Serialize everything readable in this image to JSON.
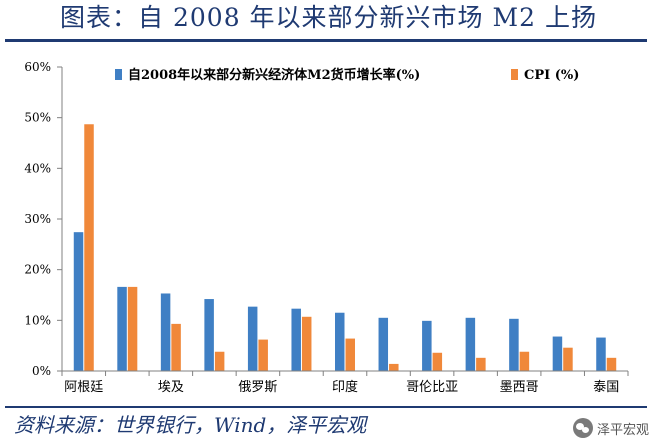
{
  "header": {
    "title": "图表：自 2008 年以来部分新兴市场 M2 上扬"
  },
  "footer": {
    "source": "资料来源：世界银行，Wind，泽平宏观",
    "watermark": "泽平宏观"
  },
  "colors": {
    "series_m2": "#3f7fc4",
    "series_cpi": "#f0883a",
    "frame": "#1f3a72",
    "axis": "#808080"
  },
  "chart_data": {
    "type": "bar",
    "categories": [
      "阿根廷",
      "",
      "埃及",
      "",
      "俄罗斯",
      "",
      "印度",
      "",
      "哥伦比亚",
      "",
      "墨西哥",
      "",
      "泰国"
    ],
    "series": [
      {
        "name": "自2008年以来部分新兴经济体M2货币增长率(%)",
        "values": [
          27.4,
          16.6,
          15.3,
          14.2,
          12.7,
          12.3,
          11.5,
          10.5,
          9.9,
          10.5,
          10.3,
          6.8,
          6.6
        ]
      },
      {
        "name": "CPI (%)",
        "values": [
          48.7,
          16.6,
          9.3,
          3.8,
          6.2,
          10.7,
          6.4,
          1.4,
          3.6,
          2.6,
          3.8,
          4.6,
          2.6
        ]
      }
    ],
    "yticks": [
      "0%",
      "10%",
      "20%",
      "30%",
      "40%",
      "50%",
      "60%"
    ],
    "ylim": [
      0,
      60
    ],
    "grid": false,
    "legend": "top"
  }
}
